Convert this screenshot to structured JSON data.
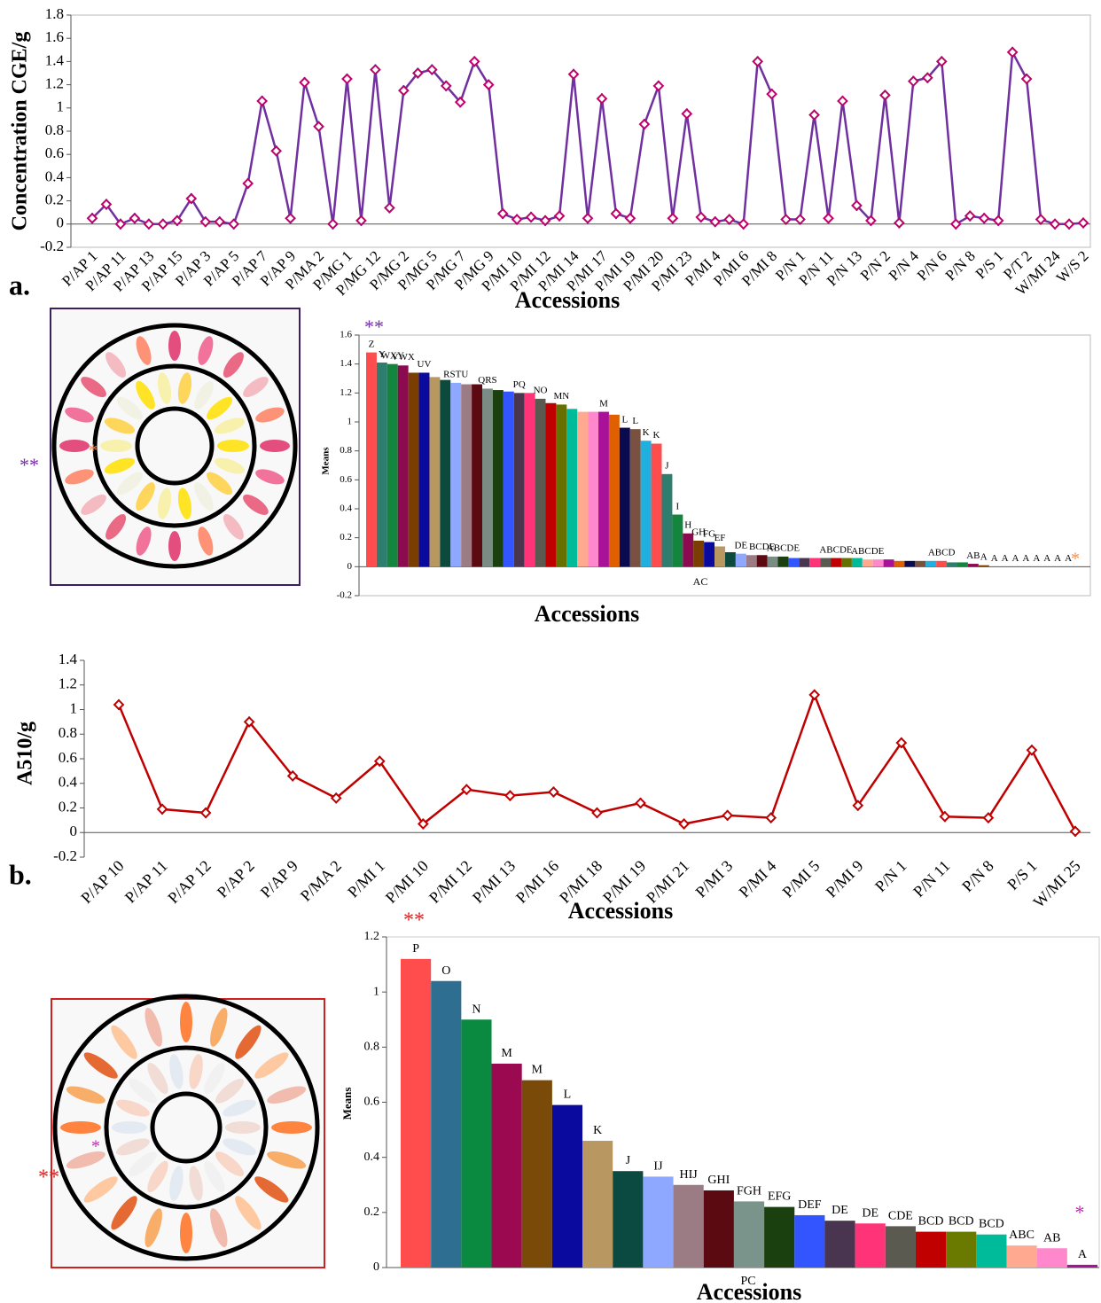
{
  "chart_data": [
    {
      "type": "line",
      "panel_label": "a.",
      "y_label": "Concentration CGE/g",
      "x_label": "Accessions",
      "categories": [
        "P/AP 1",
        null,
        "P/AP 11",
        null,
        "P/AP 13",
        null,
        "P/AP 15",
        null,
        "P/AP 3",
        null,
        "P/AP 5",
        null,
        "P/AP 7",
        null,
        "P/AP 9",
        null,
        "P/MA 2",
        null,
        "P/MG 1",
        null,
        "P/MG 12",
        null,
        "P/MG 2",
        null,
        "P/MG 5",
        null,
        "P/MG 7",
        null,
        "P/MG 9",
        null,
        "P/MI 10",
        null,
        "P/MI 12",
        null,
        "P/MI 14",
        null,
        "P/MI 17",
        null,
        "P/MI 19",
        null,
        "P/MI 20",
        null,
        "P/MI 23",
        null,
        "P/MI 4",
        null,
        "P/MI 6",
        null,
        "P/MI 8",
        null,
        "P/N 1",
        null,
        "P/N 11",
        null,
        "P/N 13",
        null,
        "P/N 2",
        null,
        "P/N 4",
        null,
        "P/N 6",
        null,
        "P/N 8",
        null,
        "P/S 1",
        null,
        "P/T 2",
        null,
        "W/MI 24",
        null,
        "W/S 2"
      ],
      "values": [
        0.05,
        0.17,
        0.0,
        0.05,
        0.0,
        0.0,
        0.03,
        0.22,
        0.02,
        0.02,
        0.0,
        0.35,
        1.06,
        0.63,
        0.05,
        1.22,
        0.84,
        0.0,
        1.25,
        0.03,
        1.33,
        0.14,
        1.15,
        1.3,
        1.33,
        1.19,
        1.05,
        1.4,
        1.2,
        0.09,
        0.04,
        0.06,
        0.03,
        0.07,
        1.29,
        0.05,
        1.08,
        0.09,
        0.05,
        0.86,
        1.19,
        0.05,
        0.95,
        0.06,
        0.02,
        0.04,
        0.0,
        1.4,
        1.12,
        0.04,
        0.04,
        0.94,
        0.05,
        1.06,
        0.16,
        0.03,
        1.11,
        0.01,
        1.23,
        1.26,
        1.4,
        0.0,
        0.07,
        0.05,
        0.03,
        1.48,
        1.25,
        0.04,
        0.0,
        0.0,
        0.01
      ],
      "color": "#7030a0",
      "marker_color": "#c0006a",
      "ylim": [
        -0.2,
        1.8
      ],
      "yticks": [
        -0.2,
        0,
        0.2,
        0.4,
        0.6,
        0.8,
        1,
        1.2,
        1.4,
        1.6,
        1.8
      ]
    },
    {
      "type": "bar",
      "y_label": "Means",
      "x_label": "Accessions",
      "annotations": [
        "**",
        "*",
        "AC",
        "**",
        "*"
      ],
      "values": [
        1.48,
        1.41,
        1.4,
        1.39,
        1.34,
        1.34,
        1.31,
        1.29,
        1.27,
        1.26,
        1.26,
        1.23,
        1.22,
        1.21,
        1.2,
        1.2,
        1.16,
        1.13,
        1.12,
        1.09,
        1.07,
        1.07,
        1.07,
        1.05,
        0.96,
        0.95,
        0.87,
        0.85,
        0.64,
        0.36,
        0.23,
        0.18,
        0.17,
        0.14,
        0.1,
        0.09,
        0.08,
        0.08,
        0.07,
        0.07,
        0.06,
        0.06,
        0.06,
        0.06,
        0.06,
        0.06,
        0.06,
        0.05,
        0.05,
        0.05,
        0.04,
        0.04,
        0.04,
        0.04,
        0.04,
        0.03,
        0.03,
        0.02,
        0.01,
        0,
        0,
        0,
        0,
        0,
        0,
        0,
        0
      ],
      "group_letters": [
        "Z",
        "Y",
        "WXY",
        "VWX",
        null,
        "UV",
        null,
        null,
        "RSTU",
        null,
        null,
        "QRS",
        null,
        null,
        "PQ",
        null,
        "NO",
        null,
        "MN",
        null,
        null,
        null,
        "M",
        null,
        "L",
        "L",
        "K",
        "K",
        "J",
        "I",
        "H",
        "GH",
        "FG",
        "EF",
        null,
        "DE",
        null,
        "BCDE",
        null,
        "ABCDE",
        null,
        null,
        null,
        null,
        "ABCDE",
        null,
        null,
        "ABCDE",
        null,
        null,
        null,
        null,
        null,
        null,
        "ABCD",
        null,
        null,
        "AB",
        "A",
        "A",
        "A",
        "A",
        "A",
        "A",
        "A",
        "A",
        "A"
      ],
      "colors": [
        "#ff4d4d",
        "#2e7d6e",
        "#14853c",
        "#8b0a50",
        "#7a3e00",
        "#0a0a9e",
        "#b89860",
        "#0c4a3e",
        "#8fa8ff",
        "#9b7b84",
        "#5a0a10",
        "#7a8c84",
        "#1a4010",
        "#3355ff",
        "#4a3550",
        "#ff3377",
        "#5a5a50",
        "#c00000",
        "#667000",
        "#00bb99",
        "#ffaa90",
        "#ff88cc",
        "#aa1199",
        "#e06000",
        "#0a0a50",
        "#7a5040",
        "#20b0e0"
      ],
      "ylim": [
        -0.2,
        1.6
      ],
      "yticks": [
        -0.2,
        0,
        0.2,
        0.4,
        0.6,
        0.8,
        1,
        1.2,
        1.4,
        1.6
      ]
    },
    {
      "type": "line",
      "panel_label": "b.",
      "y_label": "A510/g",
      "x_label": "Accessions",
      "categories": [
        "P/AP 10",
        "P/AP 11",
        "P/AP 12",
        "P/AP 2",
        "P/AP 9",
        "P/MA 2",
        "P/MI 1",
        "P/MI 10",
        "P/MI 12",
        "P/MI 13",
        "P/MI 16",
        "P/MI 18",
        "P/MI 19",
        "P/MI 21",
        "P/MI 3",
        "P/MI 4",
        "P/MI 5",
        "P/MI 9",
        "P/N 1",
        "P/N 11",
        "P/N 8",
        "P/S 1",
        "W/MI 25"
      ],
      "values": [
        1.04,
        0.19,
        0.16,
        0.9,
        0.46,
        0.28,
        0.58,
        0.07,
        0.35,
        0.3,
        0.33,
        0.16,
        0.24,
        0.07,
        0.14,
        0.12,
        1.12,
        0.22,
        0.73,
        0.13,
        0.12,
        0.67,
        0.01
      ],
      "color": "#c00000",
      "marker_color": "#c00000",
      "ylim": [
        -0.2,
        1.4
      ],
      "yticks": [
        -0.2,
        0,
        0.2,
        0.4,
        0.6,
        0.8,
        1,
        1.2,
        1.4
      ]
    },
    {
      "type": "bar",
      "y_label": "Means",
      "x_label": "Accessions",
      "annotations": [
        "**",
        "*",
        "PC",
        "**",
        "*"
      ],
      "values": [
        1.12,
        1.04,
        0.9,
        0.74,
        0.68,
        0.59,
        0.46,
        0.35,
        0.33,
        0.3,
        0.28,
        0.24,
        0.22,
        0.19,
        0.17,
        0.16,
        0.15,
        0.13,
        0.13,
        0.12,
        0.08,
        0.07,
        0.01
      ],
      "group_letters": [
        "P",
        "O",
        "N",
        "M",
        "M",
        "L",
        "K",
        "J",
        "IJ",
        "HIJ",
        "GHI",
        "FGH",
        "EFG",
        "DEF",
        "DE",
        "DE",
        "CDE",
        "BCD",
        "BCD",
        "BCD",
        "ABC",
        "AB",
        "A"
      ],
      "colors": [
        "#ff4d4d",
        "#2e6e90",
        "#0a8a40",
        "#9b0a50",
        "#7a4a08",
        "#0a0a9e",
        "#b89860",
        "#0a4a40",
        "#8fa8ff",
        "#9b7b84",
        "#5a0a10",
        "#7a948c",
        "#1a4010",
        "#3355ff",
        "#4a3550",
        "#ff3377",
        "#5a5a50",
        "#c00000",
        "#6a7a00",
        "#00bb99",
        "#ffaa90",
        "#ff88cc",
        "#aa1199"
      ],
      "ylim": [
        0,
        1.2
      ],
      "yticks": [
        0,
        0.2,
        0.4,
        0.6,
        0.8,
        1,
        1.2
      ]
    }
  ]
}
